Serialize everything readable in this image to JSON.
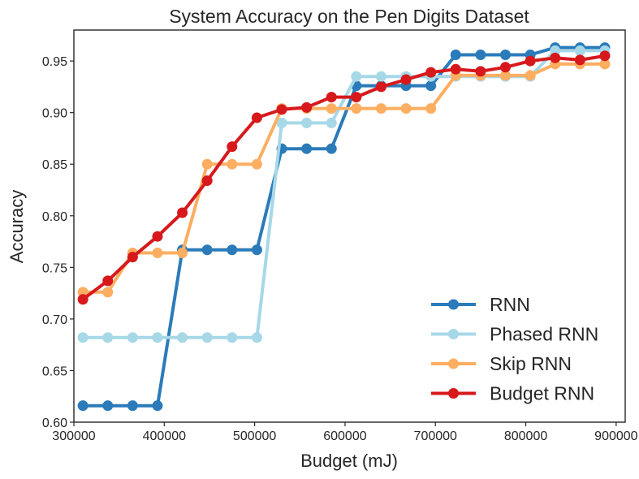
{
  "chart_data": {
    "type": "line",
    "title": "System Accuracy on the Pen Digits Dataset",
    "xlabel": "Budget (mJ)",
    "ylabel": "Accuracy",
    "xlim": [
      300000,
      910000
    ],
    "ylim": [
      0.6,
      0.98
    ],
    "xticks": [
      300000,
      400000,
      500000,
      600000,
      700000,
      800000,
      900000
    ],
    "xtick_labels": [
      "300000",
      "400000",
      "500000",
      "600000",
      "700000",
      "800000",
      "900000"
    ],
    "yticks": [
      0.6,
      0.65,
      0.7,
      0.75,
      0.8,
      0.85,
      0.9,
      0.95
    ],
    "ytick_labels": [
      "0.60",
      "0.65",
      "0.70",
      "0.75",
      "0.80",
      "0.85",
      "0.90",
      "0.95"
    ],
    "grid": false,
    "legend_position": "bottom-right",
    "x": [
      310000,
      337500,
      365000,
      392500,
      420000,
      447500,
      475000,
      502500,
      530000,
      557500,
      585000,
      612500,
      640000,
      667500,
      695000,
      722500,
      750000,
      777500,
      805000,
      832500,
      860000,
      887500
    ],
    "series": [
      {
        "name": "RNN",
        "color": "#2b7bba",
        "values": [
          0.616,
          0.616,
          0.616,
          0.616,
          0.767,
          0.767,
          0.767,
          0.767,
          0.865,
          0.865,
          0.865,
          0.926,
          0.926,
          0.926,
          0.926,
          0.956,
          0.956,
          0.956,
          0.956,
          0.963,
          0.963,
          0.963
        ]
      },
      {
        "name": "Phased RNN",
        "color": "#a6d8e8",
        "values": [
          0.682,
          0.682,
          0.682,
          0.682,
          0.682,
          0.682,
          0.682,
          0.682,
          0.89,
          0.89,
          0.89,
          0.935,
          0.935,
          0.935,
          0.935,
          0.935,
          0.935,
          0.935,
          0.935,
          0.96,
          0.96,
          0.96
        ]
      },
      {
        "name": "Skip RNN",
        "color": "#fdae61",
        "values": [
          0.726,
          0.726,
          0.764,
          0.764,
          0.764,
          0.85,
          0.85,
          0.85,
          0.904,
          0.904,
          0.904,
          0.904,
          0.904,
          0.904,
          0.904,
          0.936,
          0.936,
          0.936,
          0.936,
          0.947,
          0.947,
          0.947
        ]
      },
      {
        "name": "Budget RNN",
        "color": "#d7191c",
        "values": [
          0.719,
          0.737,
          0.76,
          0.78,
          0.803,
          0.834,
          0.867,
          0.895,
          0.903,
          0.905,
          0.915,
          0.915,
          0.925,
          0.932,
          0.939,
          0.942,
          0.94,
          0.944,
          0.95,
          0.953,
          0.951,
          0.955
        ]
      }
    ]
  }
}
